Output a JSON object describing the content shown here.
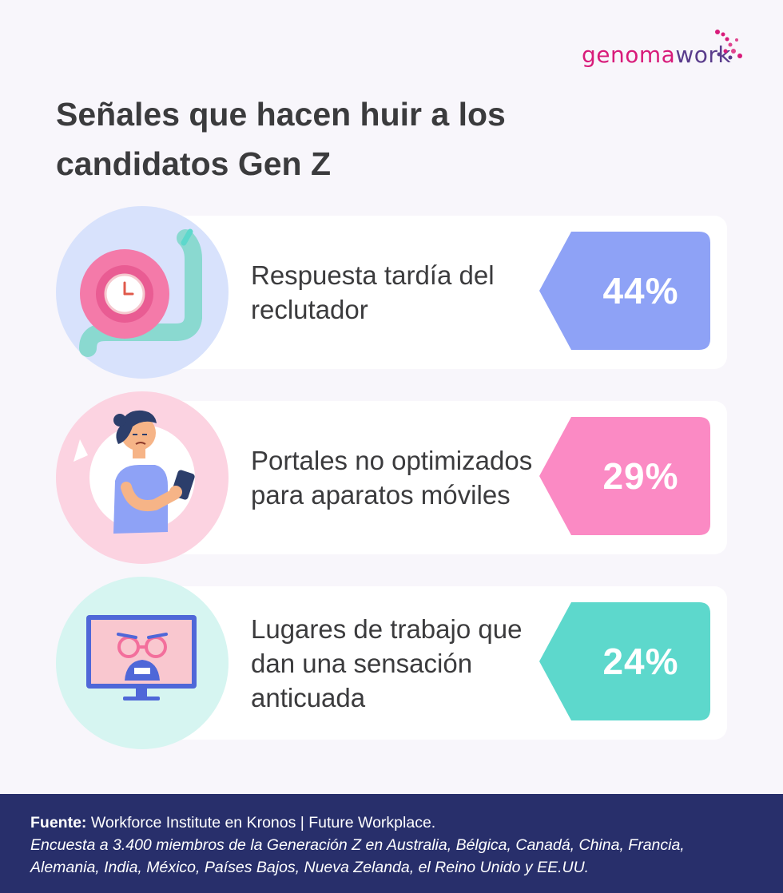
{
  "brand": {
    "part1": "genoma",
    "part2": "work",
    "color1": "#d81b7a",
    "color2": "#5a3c8c"
  },
  "title": "Señales que hacen huir a los candidatos Gen Z",
  "chart_data": {
    "type": "bar",
    "title": "Señales que hacen huir a los candidatos Gen Z",
    "categories": [
      "Respuesta tardía del reclutador",
      "Portales no optimizados para aparatos móviles",
      "Lugares de trabajo que dan una sensación anticuada"
    ],
    "values": [
      44,
      29,
      24
    ],
    "value_labels": [
      "44%",
      "29%",
      "24%"
    ],
    "colors": [
      "#8ea2f6",
      "#fb8ac4",
      "#5dd8cc"
    ],
    "icons": [
      "snail-clock-icon",
      "woman-phone-icon",
      "old-face-monitor-icon"
    ],
    "ylim": [
      0,
      100
    ],
    "grid": false,
    "legend": "none"
  },
  "footer": {
    "source_label": "Fuente:",
    "source_text": "Workforce Institute en Kronos | Future Workplace.",
    "note": "Encuesta a 3.400 miembros de la Generación Z en Australia, Bélgica, Canadá, China, Francia, Alemania, India, México, Países Bajos, Nueva Zelanda, el Reino Unido y EE.UU."
  }
}
